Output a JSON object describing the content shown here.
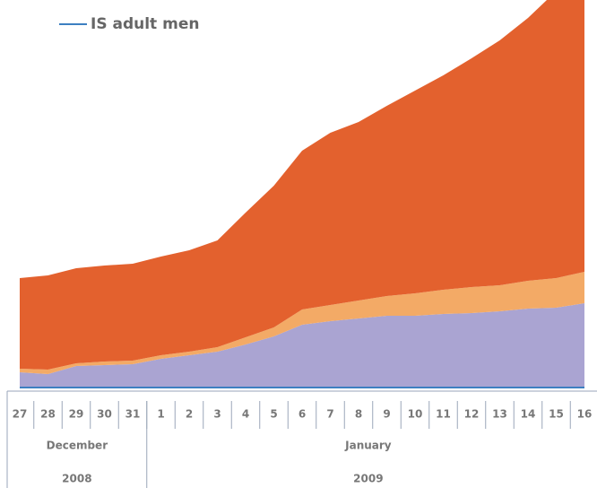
{
  "chart_data": {
    "type": "area",
    "categories": [
      "27",
      "28",
      "29",
      "30",
      "31",
      "1",
      "2",
      "3",
      "4",
      "5",
      "6",
      "7",
      "8",
      "9",
      "10",
      "11",
      "12",
      "13",
      "14",
      "15",
      "16"
    ],
    "months": [
      {
        "name": "December",
        "year": "2008"
      },
      {
        "name": "January",
        "year": "2009"
      }
    ],
    "line_series": {
      "name": "IS adult men",
      "color": "#3d7fc1",
      "values": [
        1,
        1,
        1,
        1,
        1,
        1,
        1,
        1,
        1,
        1,
        1,
        1,
        1,
        1,
        1,
        1,
        1,
        1,
        1,
        1,
        1
      ]
    },
    "series": [
      {
        "color": "#aaa4d2",
        "values": [
          18,
          16,
          25,
          26,
          27,
          33,
          37,
          41,
          49,
          58,
          71,
          75,
          78,
          81,
          81,
          83,
          84,
          86,
          89,
          90,
          95
        ]
      },
      {
        "color": "#f3aa66",
        "values": [
          4,
          5,
          3,
          4,
          4,
          4,
          4,
          5,
          8,
          10,
          17,
          18,
          20,
          22,
          25,
          27,
          29,
          29,
          31,
          33,
          35
        ]
      },
      {
        "color": "#e3612e",
        "values": [
          101,
          105,
          106,
          107,
          108,
          110,
          113,
          119,
          139,
          158,
          177,
          192,
          199,
          212,
          226,
          239,
          255,
          273,
          293,
          320,
          333
        ]
      }
    ]
  }
}
